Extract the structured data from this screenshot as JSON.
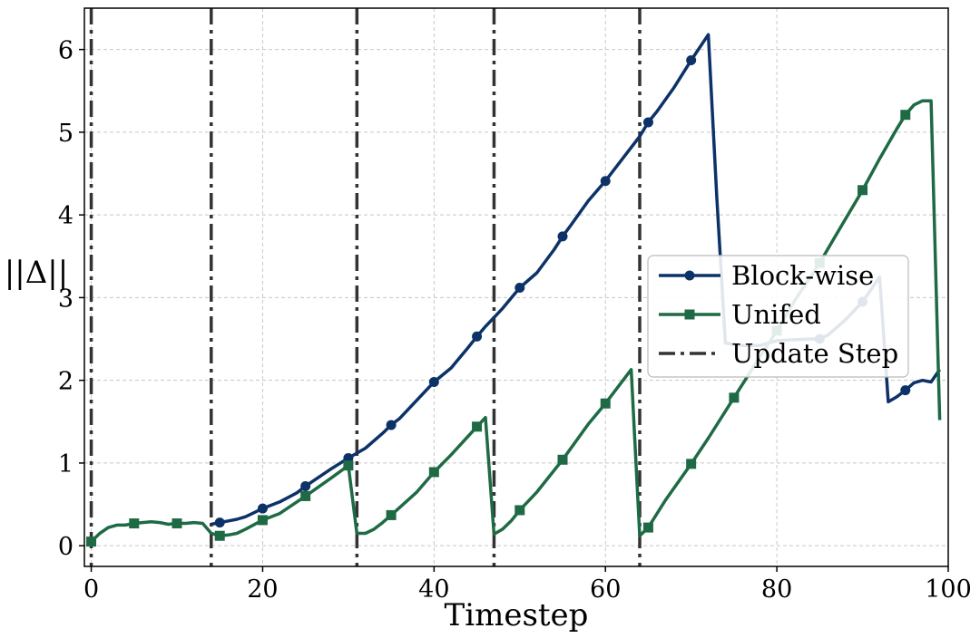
{
  "chart_data": {
    "type": "line",
    "xlabel": "Timestep",
    "ylabel": "||Δ||",
    "xlim": [
      -0.8,
      100
    ],
    "ylim": [
      -0.25,
      6.5
    ],
    "x_ticks": [
      0,
      20,
      40,
      60,
      80,
      100
    ],
    "y_ticks": [
      0,
      1,
      2,
      3,
      4,
      5,
      6
    ],
    "grid": true,
    "legend_position": "center-right",
    "series": [
      {
        "name": "Block-wise",
        "color": "#0d3268",
        "marker": "circle",
        "x": [
          14,
          15,
          16,
          17,
          18,
          19,
          20,
          22,
          24,
          25,
          26,
          28,
          30,
          32,
          34,
          35,
          36,
          38,
          40,
          42,
          44,
          45,
          46,
          48,
          50,
          52,
          54,
          55,
          56,
          58,
          60,
          62,
          64,
          65,
          66,
          68,
          70,
          72,
          73,
          74,
          76,
          78,
          80,
          82,
          84,
          85,
          86,
          88,
          90,
          92,
          93,
          94,
          95,
          96,
          97,
          98,
          99
        ],
        "y": [
          0.26,
          0.28,
          0.3,
          0.32,
          0.35,
          0.4,
          0.45,
          0.53,
          0.64,
          0.72,
          0.79,
          0.93,
          1.06,
          1.18,
          1.36,
          1.46,
          1.54,
          1.76,
          1.98,
          2.15,
          2.4,
          2.53,
          2.65,
          2.87,
          3.12,
          3.3,
          3.58,
          3.74,
          3.88,
          4.17,
          4.41,
          4.68,
          4.95,
          5.12,
          5.25,
          5.54,
          5.87,
          6.18,
          4.2,
          2.45,
          2.42,
          2.42,
          2.48,
          2.49,
          2.5,
          2.5,
          2.55,
          2.73,
          2.95,
          3.25,
          1.74,
          1.8,
          1.88,
          1.97,
          2.0,
          1.98,
          2.13
        ],
        "marker_x": [
          15,
          20,
          25,
          30,
          35,
          40,
          45,
          50,
          55,
          60,
          65,
          70,
          85,
          90,
          95
        ]
      },
      {
        "name": "Unifed",
        "color": "#1e6a44",
        "marker": "square",
        "x": [
          0,
          1,
          2,
          3,
          4,
          5,
          6,
          7,
          8,
          9,
          10,
          11,
          12,
          13,
          14,
          15,
          16,
          17,
          18,
          20,
          22,
          25,
          28,
          30,
          31,
          32,
          33,
          34,
          35,
          38,
          40,
          42,
          45,
          46,
          47,
          48,
          49,
          50,
          52,
          55,
          58,
          60,
          63,
          64,
          65,
          67,
          70,
          72,
          75,
          78,
          80,
          82,
          85,
          88,
          90,
          92,
          94,
          95,
          96,
          97,
          98,
          99
        ],
        "y": [
          0.05,
          0.15,
          0.22,
          0.25,
          0.25,
          0.27,
          0.28,
          0.29,
          0.28,
          0.26,
          0.27,
          0.27,
          0.28,
          0.27,
          0.15,
          0.12,
          0.13,
          0.15,
          0.2,
          0.31,
          0.39,
          0.6,
          0.82,
          0.97,
          0.15,
          0.15,
          0.2,
          0.28,
          0.37,
          0.65,
          0.89,
          1.1,
          1.44,
          1.55,
          0.14,
          0.2,
          0.3,
          0.43,
          0.65,
          1.04,
          1.47,
          1.72,
          2.13,
          0.12,
          0.22,
          0.55,
          0.99,
          1.3,
          1.79,
          2.28,
          2.6,
          2.95,
          3.42,
          3.95,
          4.3,
          4.68,
          5.04,
          5.21,
          5.33,
          5.38,
          5.38,
          1.52
        ],
        "marker_x": [
          0,
          5,
          10,
          15,
          20,
          25,
          30,
          35,
          40,
          45,
          50,
          55,
          60,
          65,
          70,
          75,
          80,
          85,
          90,
          95
        ]
      },
      {
        "name": "Update Step",
        "color": "#333333",
        "style": "dash-dot",
        "x": [
          0,
          14,
          31,
          47,
          64
        ]
      }
    ]
  }
}
